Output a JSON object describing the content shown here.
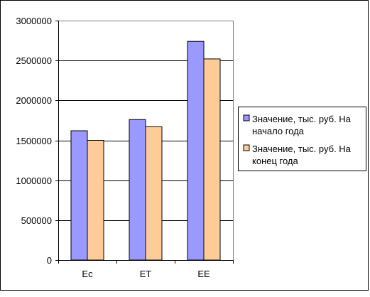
{
  "chart_data": {
    "type": "bar",
    "categories": [
      "Ec",
      "ET",
      "EE"
    ],
    "series": [
      {
        "name": "Значение, тыс. руб. На начало года",
        "legend_lines": [
          "Значение, тыс. руб. На",
          "начало года"
        ],
        "color": "#9999ff",
        "values": [
          1620000,
          1760000,
          2740000
        ]
      },
      {
        "name": "Значение, тыс. руб. На конец года",
        "legend_lines": [
          "Значение, тыс. руб. На",
          "конец года"
        ],
        "color": "#ffcc99",
        "values": [
          1500000,
          1670000,
          2520000
        ]
      }
    ],
    "ylim": [
      0,
      3000000
    ],
    "yticks": [
      "0",
      "500000",
      "1000000",
      "1500000",
      "2000000",
      "2500000",
      "3000000"
    ],
    "grid": true,
    "legend_position": "right",
    "title": "",
    "xlabel": "",
    "ylabel": ""
  }
}
